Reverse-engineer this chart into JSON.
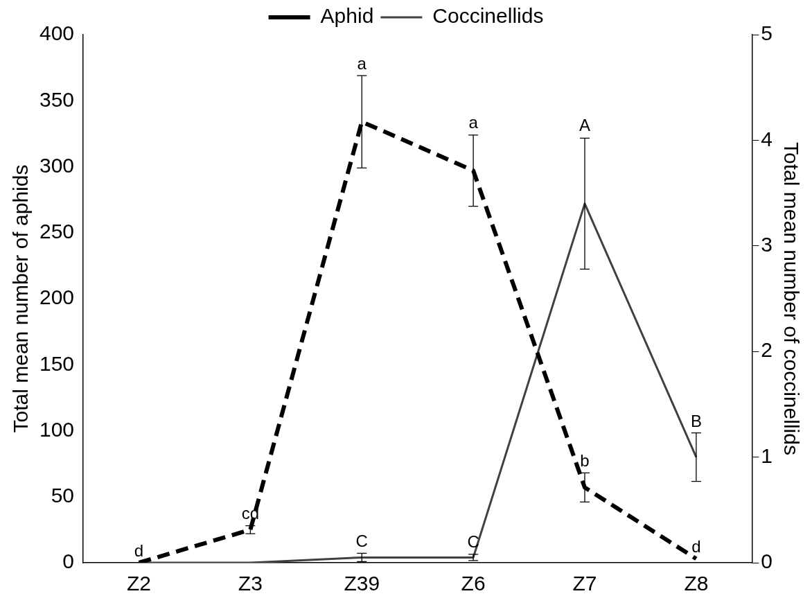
{
  "chart_data": {
    "type": "line",
    "categories": [
      "Z2",
      "Z3",
      "Z39",
      "Z6",
      "Z7",
      "Z8"
    ],
    "ylabel": "Total mean number of aphids",
    "y2label": "Total mean number of coccinellids",
    "ylim": [
      0,
      400
    ],
    "yticks": [
      0,
      50,
      100,
      150,
      200,
      250,
      300,
      350,
      400
    ],
    "y2lim": [
      0,
      5
    ],
    "y2ticks": [
      0,
      1,
      2,
      3,
      4,
      5
    ],
    "series": [
      {
        "name": "Aphid",
        "color": "#000000",
        "line_style": "dashed",
        "values": [
          0,
          25,
          334,
          297,
          57,
          3
        ],
        "errors": [
          null,
          3,
          35,
          27,
          11,
          null
        ]
      },
      {
        "name": "Coccinellids",
        "color": "#404040",
        "line_style": "solid",
        "axis": "y2",
        "values": [
          0,
          0,
          0.05,
          0.05,
          3.4,
          1.0
        ],
        "errors": [
          null,
          null,
          0.04,
          0.03,
          0.62,
          0.23
        ]
      }
    ],
    "annotations": [
      {
        "text": "d",
        "x": "Z2",
        "y": 0
      },
      {
        "text": "cd",
        "x": "Z3",
        "y": 25
      },
      {
        "text": "a",
        "x": "Z39",
        "y": 334
      },
      {
        "text": "a",
        "x": "Z6",
        "y": 297
      },
      {
        "text": "b",
        "x": "Z7",
        "y": 57
      },
      {
        "text": "d",
        "x": "Z8",
        "y": 3
      },
      {
        "text": "C",
        "x": "Z39",
        "y": 0.05
      },
      {
        "text": "C",
        "x": "Z6",
        "y": 0.05
      },
      {
        "text": "A",
        "x": "Z7",
        "y": 322
      },
      {
        "text": "B",
        "x": "Z8",
        "y": 98
      }
    ],
    "legend": "top",
    "grid": false,
    "marker": "none"
  }
}
